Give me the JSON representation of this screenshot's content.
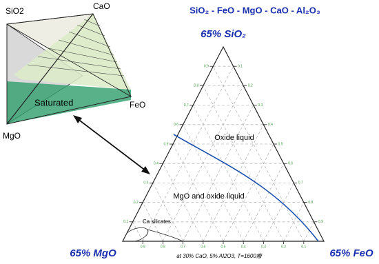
{
  "title": "SiO₂ - FeO - MgO - CaO - Al₂O₃",
  "sketch": {
    "labels": {
      "sio2": "SiO2",
      "cao": "CaO",
      "feo": "FeO",
      "mgo": "MgO"
    },
    "region": "Saturated"
  },
  "ternary": {
    "apex_labels": {
      "top": "65% SiO₂",
      "left": "65% MgO",
      "right": "65% FeO"
    },
    "regions": {
      "upper": "Oxide liquid",
      "lower": "MgO and oxide liquid",
      "corner": "Ca silicates"
    },
    "left_ticks": [
      0.1,
      0.2,
      0.3,
      0.4,
      0.5,
      0.6,
      0.7,
      0.8,
      0.9
    ],
    "right_ticks": [
      0.1,
      0.2,
      0.3,
      0.4,
      0.5,
      0.6,
      0.7,
      0.8,
      0.9
    ],
    "bottom_ticks": [
      0.9,
      0.8,
      0.7,
      0.6,
      0.5,
      0.4,
      0.3,
      0.2,
      0.1
    ],
    "caption": "at 30% CaO, 5% Al2O3, T=1600癈"
  }
}
